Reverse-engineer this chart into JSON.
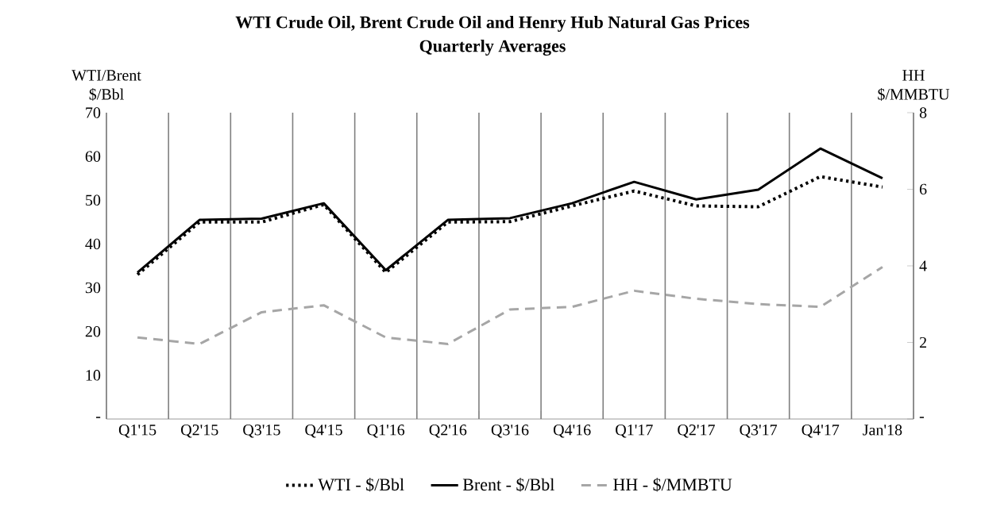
{
  "chart_data": {
    "type": "line",
    "title": "WTI Crude Oil, Brent Crude Oil and Henry Hub Natural Gas Prices",
    "subtitle": "Quarterly Averages",
    "ylabel": "WTI/Brent $/Bbl",
    "y2label": "HH $/MMBTU",
    "categories": [
      "Q1'15",
      "Q2'15",
      "Q3'15",
      "Q4'15",
      "Q1'16",
      "Q2'16",
      "Q3'16",
      "Q4'16",
      "Q1'17",
      "Q2'17",
      "Q3'17",
      "Q4'17",
      "Jan'18"
    ],
    "series": [
      {
        "name": "WTI - $/Bbl",
        "color": "#000000",
        "line_style": "dotted",
        "values": [
          33,
          45,
          45,
          49,
          33.5,
          45,
          45.1,
          48.7,
          52.1,
          48.7,
          48.5,
          55.4,
          53
        ]
      },
      {
        "name": "Brent - $/Bbl",
        "color": "#000000",
        "line_style": "solid",
        "values": [
          33.5,
          45.5,
          45.8,
          49.3,
          34,
          45.5,
          45.9,
          49.3,
          54.2,
          50.2,
          52.4,
          61.8,
          55
        ]
      },
      {
        "name": "HH - $/MMBTU",
        "color": "#a6a6a6",
        "line_style": "dashed",
        "axis": "y2",
        "values": [
          2.13,
          1.96,
          2.79,
          2.97,
          2.13,
          1.96,
          2.86,
          2.93,
          3.35,
          3.14,
          3.0,
          2.93,
          3.97
        ]
      }
    ],
    "ylim": [
      0,
      70
    ],
    "yticks": [
      {
        "value": 0,
        "label": "-"
      },
      10,
      20,
      30,
      40,
      50,
      60,
      70
    ],
    "y2lim": [
      0,
      8
    ],
    "y2ticks": [
      {
        "value": 0,
        "label": "-"
      },
      2,
      4,
      6,
      8
    ],
    "grid": "x",
    "legend": "bottom"
  }
}
